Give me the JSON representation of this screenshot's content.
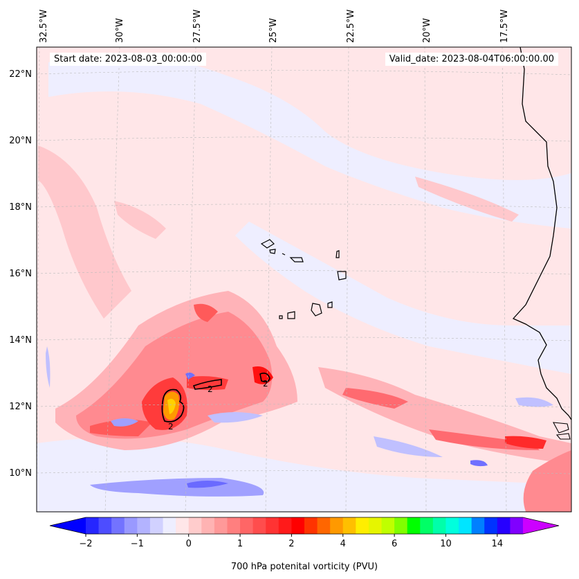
{
  "map": {
    "start_label": "Start date: 2023-08-03_00:00:00",
    "valid_label": "Valid_date: 2023-08-04T06:00:00.00",
    "longitude_labels": [
      "32.5°W",
      "30°W",
      "27.5°W",
      "25°W",
      "22.5°W",
      "20°W",
      "17.5°W"
    ],
    "latitude_labels": [
      "22°N",
      "20°N",
      "18°N",
      "16°N",
      "14°N",
      "12°N",
      "10°N"
    ],
    "contour_label": "2",
    "field_colors": {
      "background": "#ffe6e8",
      "light_blue": "#eeeeff",
      "pink": "#ffc8cc",
      "red_mid": "#ff8a90",
      "red": "#ff3b3b",
      "deep_red": "#ff1010",
      "orange": "#ff9900",
      "yellow": "#ffd000",
      "blue": "#a0a0ff",
      "deep_blue": "#6a6aff"
    }
  },
  "colorbar": {
    "title": "700 hPa potenital vorticity (PVU)",
    "tick_labels": [
      "−2",
      "−1",
      "0",
      "1",
      "2",
      "4",
      "6",
      "10",
      "14"
    ],
    "colors": [
      "#0000ff",
      "#2626ff",
      "#4d4dff",
      "#7373ff",
      "#9999ff",
      "#b3b3ff",
      "#d1d1ff",
      "#eeeeff",
      "#ffe6e8",
      "#ffcccc",
      "#ffb3b3",
      "#ff9999",
      "#ff7f7f",
      "#ff6666",
      "#ff4d4d",
      "#ff3333",
      "#ff1a1a",
      "#ff0000",
      "#ff3300",
      "#ff6600",
      "#ff9900",
      "#ffbf00",
      "#ffee00",
      "#e6f500",
      "#bfff00",
      "#80ff00",
      "#00ff00",
      "#00ff66",
      "#00ffaa",
      "#00ffdd",
      "#00e5ff",
      "#0080ff",
      "#0033ff",
      "#2600ff",
      "#8000ff",
      "#cc00ff"
    ]
  }
}
